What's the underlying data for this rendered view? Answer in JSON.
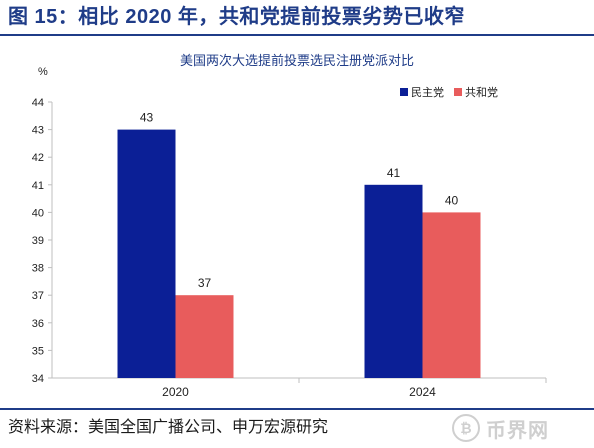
{
  "figure_title": "图 15：相比 2020 年，共和党提前投票劣势已收窄",
  "source": "资料来源：美国全国广播公司、申万宏源研究",
  "watermark": {
    "text": "币界网",
    "icon": "bitcoin-coin-icon",
    "glyph": "₿"
  },
  "colors": {
    "title": "#1f3c88",
    "democrat": "#0b1f96",
    "republican": "#e85c5c",
    "axis": "#bfbfbf"
  },
  "chart_data": {
    "type": "bar",
    "title": "美国两次大选提前投票选民注册党派对比",
    "ylabel": "%",
    "xlabel": "",
    "categories": [
      "2020",
      "2024"
    ],
    "series": [
      {
        "name": "民主党",
        "values": [
          43,
          41
        ]
      },
      {
        "name": "共和党",
        "values": [
          37,
          40
        ]
      }
    ],
    "ylim": [
      34,
      44
    ],
    "yticks": [
      34,
      35,
      36,
      37,
      38,
      39,
      40,
      41,
      42,
      43,
      44
    ],
    "grid": false,
    "legend_position": "top-right",
    "data_labels": true
  }
}
